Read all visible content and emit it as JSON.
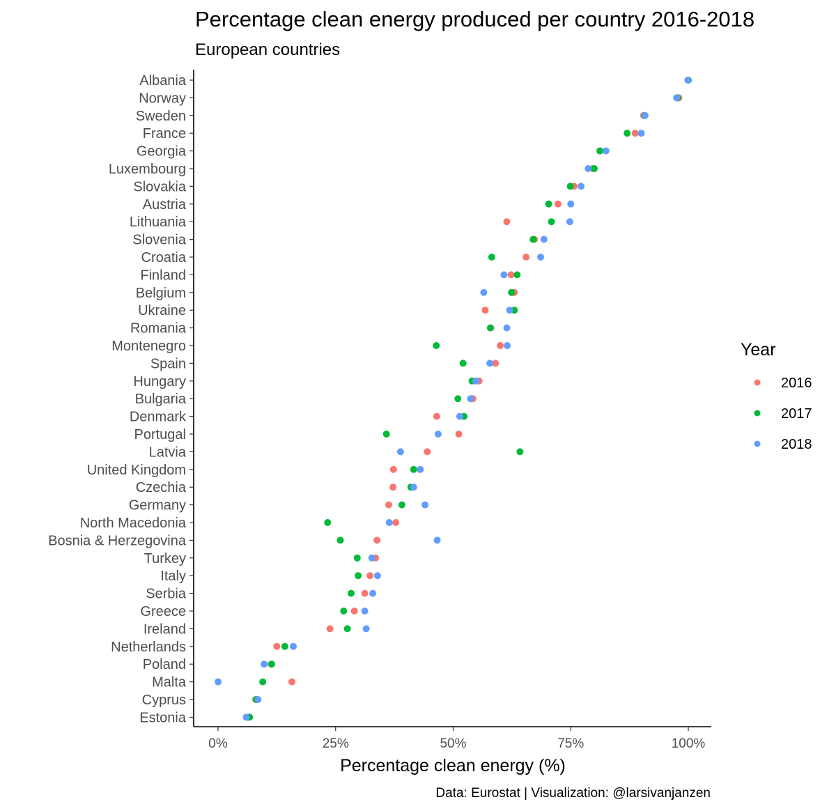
{
  "chart_data": {
    "type": "scatter",
    "title": "Percentage clean energy produced per country 2016-2018",
    "subtitle": "European countries",
    "xlabel": "Percentage clean energy (%)",
    "ylabel": "",
    "caption": "Data: Eurostat | Visualization: @larsivanjanzen",
    "xlim": [
      -0.05,
      1.05
    ],
    "x_ticks": [
      0,
      0.25,
      0.5,
      0.75,
      1
    ],
    "x_tick_labels": [
      "0%",
      "25%",
      "50%",
      "75%",
      "100%"
    ],
    "grid": false,
    "legend_position": "right",
    "legend_title": "Year",
    "colors": {
      "2016": "#F8766D",
      "2017": "#00BA38",
      "2018": "#619CFF"
    },
    "categories": [
      "Albania",
      "Norway",
      "Sweden",
      "France",
      "Georgia",
      "Luxembourg",
      "Slovakia",
      "Austria",
      "Lithuania",
      "Slovenia",
      "Croatia",
      "Finland",
      "Belgium",
      "Ukraine",
      "Romania",
      "Montenegro",
      "Spain",
      "Hungary",
      "Bulgaria",
      "Denmark",
      "Portugal",
      "Latvia",
      "United Kingdom",
      "Czechia",
      "Germany",
      "North Macedonia",
      "Bosnia & Herzegovina",
      "Turkey",
      "Italy",
      "Serbia",
      "Greece",
      "Ireland",
      "Netherlands",
      "Poland",
      "Malta",
      "Cyprus",
      "Estonia"
    ],
    "series": [
      {
        "name": "2016",
        "values": [
          1.0,
          0.98,
          0.905,
          0.887,
          0.812,
          0.797,
          0.757,
          0.723,
          0.614,
          0.673,
          0.655,
          0.623,
          0.63,
          0.568,
          0.58,
          0.6,
          0.59,
          0.555,
          0.542,
          0.465,
          0.512,
          0.445,
          0.373,
          0.372,
          0.363,
          0.378,
          0.338,
          0.335,
          0.323,
          0.312,
          0.29,
          0.238,
          0.125,
          0.113,
          0.157,
          0.08,
          0.062
        ]
      },
      {
        "name": "2017",
        "values": [
          1.0,
          0.977,
          0.907,
          0.87,
          0.812,
          0.8,
          0.749,
          0.703,
          0.709,
          0.67,
          0.582,
          0.636,
          0.624,
          0.63,
          0.579,
          0.464,
          0.521,
          0.54,
          0.51,
          0.523,
          0.358,
          0.642,
          0.416,
          0.41,
          0.391,
          0.233,
          0.26,
          0.296,
          0.298,
          0.283,
          0.267,
          0.275,
          0.142,
          0.114,
          0.095,
          0.081,
          0.067
        ]
      },
      {
        "name": "2018",
        "values": [
          0.999,
          0.975,
          0.908,
          0.9,
          0.825,
          0.787,
          0.772,
          0.75,
          0.748,
          0.693,
          0.686,
          0.608,
          0.565,
          0.62,
          0.614,
          0.615,
          0.578,
          0.548,
          0.537,
          0.514,
          0.468,
          0.388,
          0.43,
          0.416,
          0.44,
          0.364,
          0.466,
          0.327,
          0.339,
          0.329,
          0.312,
          0.315,
          0.16,
          0.098,
          0.0,
          0.085,
          0.06
        ]
      }
    ]
  }
}
